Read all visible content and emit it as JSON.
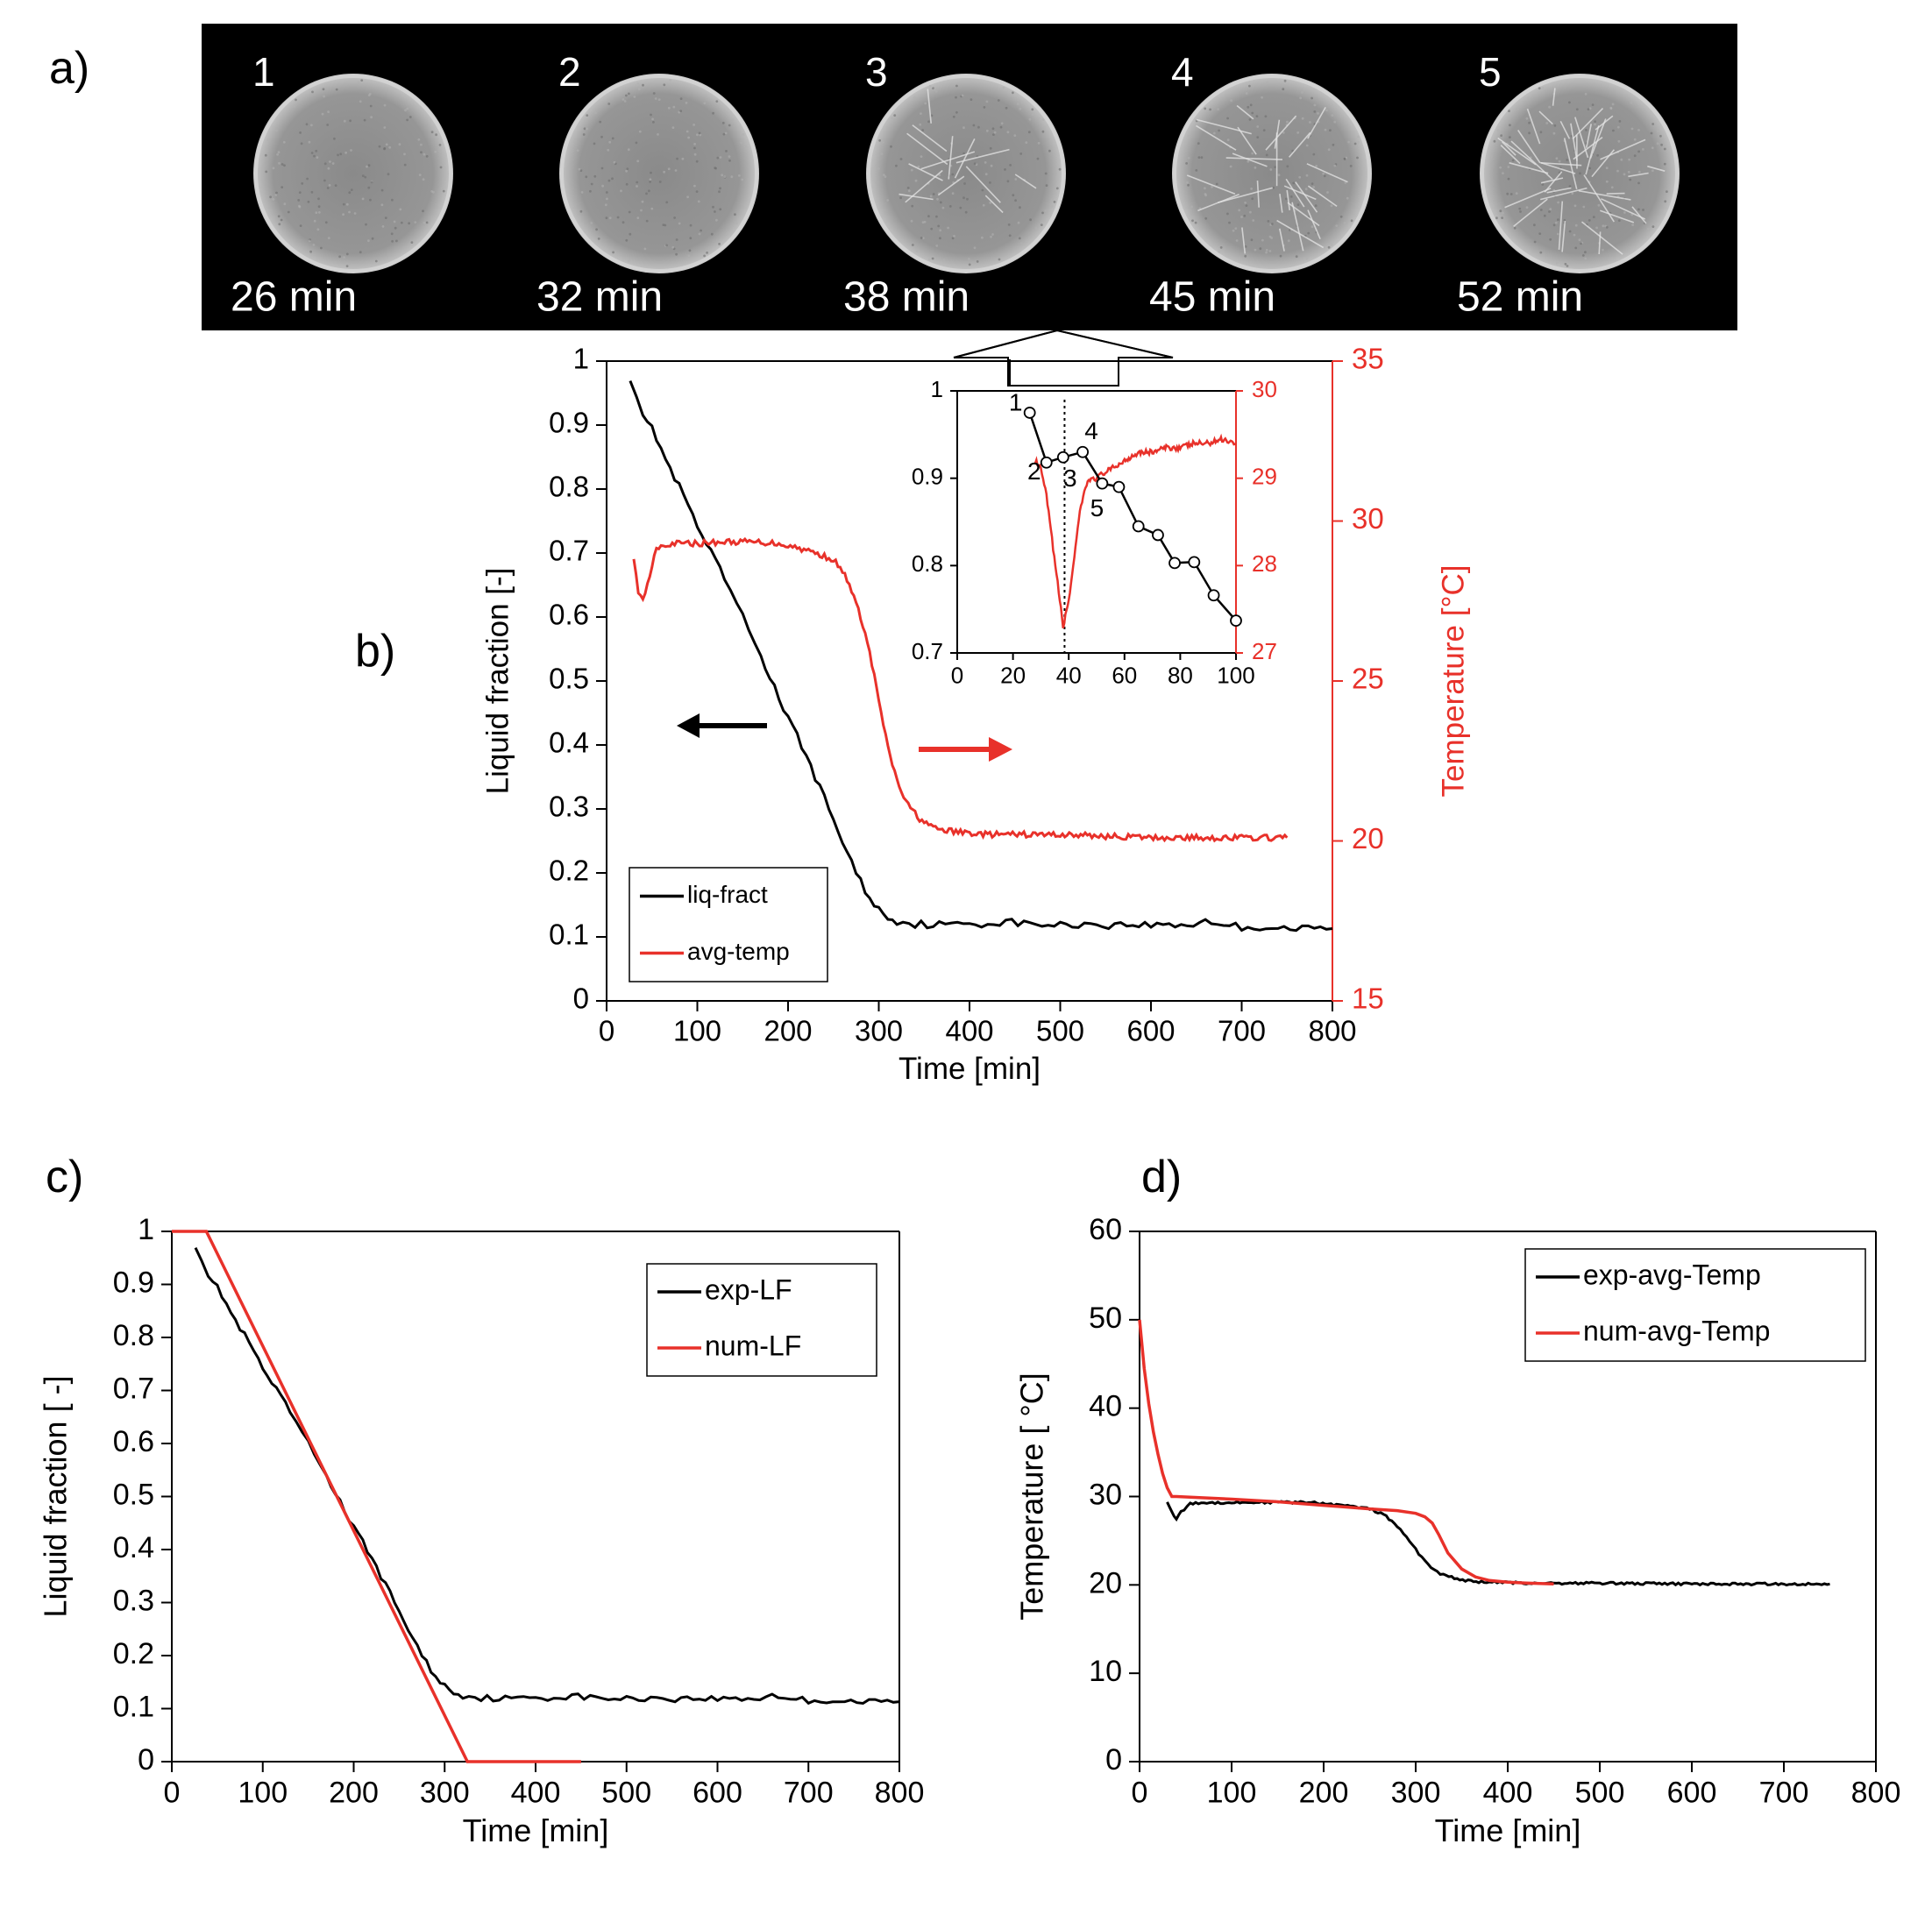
{
  "panel_labels": {
    "a": "a)",
    "b": "b)",
    "c": "c)",
    "d": "d)"
  },
  "colors": {
    "exp": "#000000",
    "num": "#e8312a",
    "strip_bg": "#000000",
    "axis_red": "#e8312a"
  },
  "panel_a": {
    "frames": [
      {
        "index": "1",
        "time": "26 min",
        "crystals": 0
      },
      {
        "index": "2",
        "time": "32 min",
        "crystals": 0
      },
      {
        "index": "3",
        "time": "38 min",
        "crystals": 1
      },
      {
        "index": "4",
        "time": "45 min",
        "crystals": 2
      },
      {
        "index": "5",
        "time": "52 min",
        "crystals": 3
      }
    ]
  },
  "chart_data": [
    {
      "id": "b",
      "type": "line",
      "xlabel": "Time [min]",
      "ylabel": "Liquid fraction [-]",
      "y2label": "Temperature [°C]",
      "xlim": [
        0,
        800
      ],
      "ylim": [
        0,
        1
      ],
      "y2lim": [
        15,
        35
      ],
      "xticks": [
        "0",
        "100",
        "200",
        "300",
        "400",
        "500",
        "600",
        "700",
        "800"
      ],
      "yticks": [
        "0",
        "0.1",
        "0.2",
        "0.3",
        "0.4",
        "0.5",
        "0.6",
        "0.7",
        "0.8",
        "0.9",
        "1"
      ],
      "y2ticks": [
        "15",
        "20",
        "25",
        "30",
        "35"
      ],
      "legend_position": "bottom-left",
      "series": [
        {
          "name": "liq-fract",
          "axis": "left",
          "color": "#000000",
          "x": [
            26,
            40,
            55,
            70,
            85,
            100,
            115,
            130,
            150,
            170,
            185,
            200,
            215,
            230,
            245,
            260,
            275,
            290,
            305,
            320,
            340,
            360,
            380,
            400,
            420,
            440,
            460,
            480,
            500,
            520,
            540,
            560,
            580,
            600,
            620,
            640,
            660,
            680,
            700,
            720,
            740,
            760,
            780,
            800
          ],
          "y": [
            0.975,
            0.92,
            0.88,
            0.83,
            0.79,
            0.74,
            0.7,
            0.66,
            0.6,
            0.54,
            0.49,
            0.44,
            0.4,
            0.35,
            0.3,
            0.25,
            0.2,
            0.16,
            0.135,
            0.125,
            0.12,
            0.12,
            0.118,
            0.122,
            0.12,
            0.125,
            0.12,
            0.12,
            0.118,
            0.12,
            0.12,
            0.118,
            0.12,
            0.118,
            0.12,
            0.118,
            0.125,
            0.12,
            0.115,
            0.115,
            0.115,
            0.112,
            0.113,
            0.113
          ]
        },
        {
          "name": "avg-temp",
          "axis": "right",
          "color": "#e8312a",
          "x": [
            30,
            35,
            40,
            45,
            55,
            70,
            100,
            130,
            160,
            190,
            220,
            250,
            265,
            280,
            290,
            300,
            310,
            320,
            330,
            345,
            360,
            380,
            400,
            420,
            450,
            500,
            550,
            600,
            650,
            700,
            750
          ],
          "y": [
            28.8,
            27.8,
            27.5,
            28.0,
            29.2,
            29.3,
            29.3,
            29.35,
            29.35,
            29.3,
            29.1,
            28.8,
            28.2,
            27.0,
            25.9,
            24.4,
            22.9,
            21.9,
            21.2,
            20.7,
            20.4,
            20.3,
            20.25,
            20.2,
            20.2,
            20.2,
            20.15,
            20.1,
            20.1,
            20.1,
            20.1
          ]
        }
      ],
      "inset": {
        "xlim": [
          0,
          100
        ],
        "ylim": [
          0.7,
          1
        ],
        "y2lim": [
          27,
          30
        ],
        "xticks": [
          "0",
          "20",
          "40",
          "60",
          "80",
          "100"
        ],
        "yticks": [
          "0.7",
          "0.8",
          "0.9",
          "1"
        ],
        "y2ticks": [
          "27",
          "28",
          "29",
          "30"
        ],
        "marker_x": 38.5,
        "point_labels": [
          {
            "label": "1",
            "x": 26,
            "y": 0.975
          },
          {
            "label": "2",
            "x": 32,
            "y": 0.918
          },
          {
            "label": "3",
            "x": 38,
            "y": 0.924
          },
          {
            "label": "4",
            "x": 45,
            "y": 0.93
          },
          {
            "label": "5",
            "x": 52,
            "y": 0.894
          }
        ],
        "series": [
          {
            "name": "liq-fract",
            "axis": "left",
            "color": "#000000",
            "x": [
              26,
              32,
              38,
              45,
              52,
              58,
              65,
              72,
              78,
              85,
              92,
              100
            ],
            "y": [
              0.975,
              0.918,
              0.924,
              0.93,
              0.894,
              0.89,
              0.845,
              0.835,
              0.803,
              0.804,
              0.766,
              0.737
            ]
          },
          {
            "name": "avg-temp",
            "axis": "right",
            "color": "#e8312a",
            "x": [
              28,
              30,
              32,
              34,
              36,
              38,
              40,
              42,
              44,
              46,
              48,
              50,
              52,
              55,
              60,
              65,
              70,
              75,
              80,
              85,
              90,
              95,
              100
            ],
            "y": [
              29.2,
              29.1,
              28.8,
              28.3,
              27.8,
              27.3,
              27.6,
              28.1,
              28.6,
              28.9,
              29.0,
              29.0,
              29.05,
              29.1,
              29.2,
              29.3,
              29.3,
              29.35,
              29.35,
              29.4,
              29.4,
              29.45,
              29.4
            ]
          }
        ]
      }
    },
    {
      "id": "c",
      "type": "line",
      "xlabel": "Time [min]",
      "ylabel": "Liquid fraction [ -]",
      "xlim": [
        0,
        800
      ],
      "ylim": [
        0,
        1
      ],
      "xticks": [
        "0",
        "100",
        "200",
        "300",
        "400",
        "500",
        "600",
        "700",
        "800"
      ],
      "yticks": [
        "0",
        "0.1",
        "0.2",
        "0.3",
        "0.4",
        "0.5",
        "0.6",
        "0.7",
        "0.8",
        "0.9",
        "1"
      ],
      "legend_position": "top-right",
      "series": [
        {
          "name": "exp-LF",
          "color": "#000000",
          "x": [
            26,
            40,
            55,
            70,
            85,
            100,
            115,
            130,
            150,
            170,
            185,
            200,
            215,
            230,
            245,
            260,
            275,
            290,
            305,
            320,
            340,
            360,
            380,
            400,
            420,
            440,
            460,
            480,
            500,
            520,
            540,
            560,
            580,
            600,
            620,
            640,
            660,
            680,
            700,
            720,
            740,
            760,
            780,
            800
          ],
          "y": [
            0.975,
            0.92,
            0.88,
            0.83,
            0.79,
            0.74,
            0.7,
            0.66,
            0.6,
            0.54,
            0.49,
            0.44,
            0.4,
            0.35,
            0.3,
            0.25,
            0.2,
            0.16,
            0.135,
            0.125,
            0.12,
            0.12,
            0.118,
            0.122,
            0.12,
            0.125,
            0.12,
            0.12,
            0.118,
            0.12,
            0.12,
            0.118,
            0.12,
            0.118,
            0.12,
            0.118,
            0.125,
            0.12,
            0.115,
            0.115,
            0.115,
            0.112,
            0.113,
            0.113
          ]
        },
        {
          "name": "num-LF",
          "color": "#e8312a",
          "x": [
            0,
            38,
            325,
            450
          ],
          "y": [
            1,
            1,
            0,
            0
          ]
        }
      ]
    },
    {
      "id": "d",
      "type": "line",
      "xlabel": "Time [min]",
      "ylabel": "Temperature [ °C]",
      "xlim": [
        0,
        800
      ],
      "ylim": [
        0,
        60
      ],
      "xticks": [
        "0",
        "100",
        "200",
        "300",
        "400",
        "500",
        "600",
        "700",
        "800"
      ],
      "yticks": [
        "0",
        "10",
        "20",
        "30",
        "40",
        "50",
        "60"
      ],
      "legend_position": "top-right",
      "series": [
        {
          "name": "exp-avg-Temp",
          "color": "#000000",
          "x": [
            30,
            35,
            40,
            45,
            55,
            70,
            100,
            130,
            160,
            190,
            220,
            250,
            265,
            280,
            290,
            300,
            310,
            320,
            330,
            345,
            360,
            380,
            400,
            420,
            450,
            500,
            550,
            600,
            650,
            700,
            750
          ],
          "y": [
            29.5,
            28.2,
            27.5,
            28.2,
            29.2,
            29.3,
            29.3,
            29.35,
            29.35,
            29.3,
            29.0,
            28.6,
            28.0,
            26.6,
            25.4,
            24.0,
            22.7,
            21.7,
            21.1,
            20.7,
            20.4,
            20.3,
            20.25,
            20.2,
            20.2,
            20.2,
            20.15,
            20.1,
            20.1,
            20.1,
            20.1
          ]
        },
        {
          "name": "num-avg-Temp",
          "color": "#e8312a",
          "x": [
            0,
            5,
            10,
            15,
            20,
            25,
            30,
            35,
            40,
            60,
            100,
            150,
            200,
            250,
            280,
            300,
            310,
            318,
            325,
            335,
            350,
            365,
            380,
            400,
            420,
            450
          ],
          "y": [
            50,
            44.5,
            40.5,
            37.3,
            34.8,
            32.6,
            31.0,
            30.0,
            30.0,
            29.9,
            29.7,
            29.4,
            29.0,
            28.6,
            28.4,
            28.1,
            27.7,
            27.0,
            25.7,
            23.6,
            21.8,
            20.9,
            20.5,
            20.3,
            20.2,
            20.1
          ]
        }
      ]
    }
  ]
}
